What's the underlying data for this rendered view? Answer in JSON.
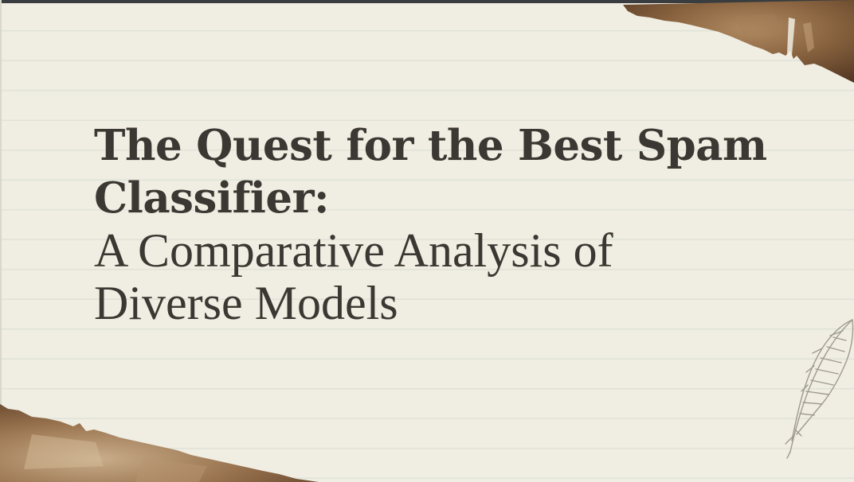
{
  "slide": {
    "title_line1": "The Quest for the Best Spam",
    "title_line2": "Classifier:",
    "subtitle_line1": "A Comparative Analysis of",
    "subtitle_line2": "Diverse Models"
  },
  "decorations": {
    "top_scrap": "torn-paper-scrap",
    "bottom_scrap": "torn-paper-scrap",
    "feather_icon": "feather-quill-icon"
  },
  "colors": {
    "paper": "#f0ede2",
    "rule_lines": "#dfe3d9",
    "text": "#3b3833",
    "scrap_dark": "#6e4a2c",
    "scrap_light": "#c9ad8a"
  }
}
